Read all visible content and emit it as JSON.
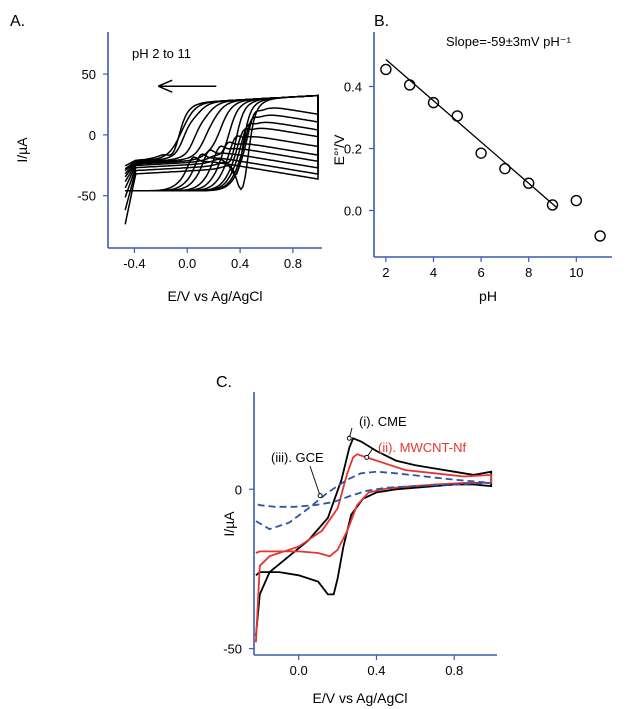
{
  "chart_data": [
    {
      "panel_label": "A.",
      "type": "line",
      "xlabel": "E/V vs Ag/AgCl",
      "ylabel": "I/µA",
      "xlim": [
        -0.6,
        1.02
      ],
      "ylim": [
        -93,
        78
      ],
      "x_ticks": [
        -0.4,
        0.0,
        0.4,
        0.8
      ],
      "x_tick_labels": [
        "-0.4",
        "0.0",
        "0.4",
        "0.8"
      ],
      "y_ticks": [
        -50,
        0,
        50
      ],
      "y_tick_labels": [
        "-50",
        "0",
        "50"
      ],
      "grid": false,
      "annotation": "pH 2 to 11",
      "annotation_arrow": {
        "from": [
          0.22,
          40
        ],
        "to": [
          -0.22,
          40
        ]
      },
      "ph_values": [
        2,
        3,
        4,
        5,
        6,
        7,
        8,
        9,
        10,
        11
      ],
      "series_defaults": {
        "E_start": -0.47,
        "E_end": 0.99
      },
      "series": [
        {
          "pH": 2,
          "Epa": 0.5,
          "Ipa": 72,
          "Epc": 0.42,
          "Ipc": -72,
          "reverse_start": -87
        },
        {
          "pH": 3,
          "Epa": 0.48,
          "Ipa": 66,
          "Epc": 0.38,
          "Ipc": -63,
          "reverse_start": -78
        },
        {
          "pH": 4,
          "Epa": 0.45,
          "Ipa": 60,
          "Epc": 0.33,
          "Ipc": -55,
          "reverse_start": -70
        },
        {
          "pH": 5,
          "Epa": 0.42,
          "Ipa": 55,
          "Epc": 0.28,
          "Ipc": -48,
          "reverse_start": -64
        },
        {
          "pH": 6,
          "Epa": 0.36,
          "Ipa": 48,
          "Epc": 0.22,
          "Ipc": -42,
          "reverse_start": -60
        },
        {
          "pH": 7,
          "Epa": 0.3,
          "Ipa": 42,
          "Epc": 0.15,
          "Ipc": -38,
          "reverse_start": -57
        },
        {
          "pH": 8,
          "Epa": 0.24,
          "Ipa": 38,
          "Epc": 0.08,
          "Ipc": -36,
          "reverse_start": -55
        },
        {
          "pH": 9,
          "Epa": 0.16,
          "Ipa": 34,
          "Epc": 0.0,
          "Ipc": -35,
          "reverse_start": -53
        },
        {
          "pH": 10,
          "Epa": 0.1,
          "Ipa": 30,
          "Epc": -0.06,
          "Ipc": -40,
          "reverse_start": -52
        },
        {
          "pH": 11,
          "Epa": 0.04,
          "Ipa": 27,
          "Epc": -0.1,
          "Ipc": -50,
          "reverse_start": -50
        }
      ]
    },
    {
      "panel_label": "B.",
      "type": "scatter",
      "xlabel": "pH",
      "ylabel": "E°'/V",
      "xlim": [
        1.5,
        11.5
      ],
      "ylim": [
        -0.15,
        0.55
      ],
      "x_ticks": [
        2,
        4,
        6,
        8,
        10
      ],
      "x_tick_labels": [
        "2",
        "4",
        "6",
        "8",
        "10"
      ],
      "y_ticks": [
        0.0,
        0.2,
        0.4
      ],
      "y_tick_labels": [
        "0.0",
        "0.2",
        "0.4"
      ],
      "grid": false,
      "annotation": "Slope=-59±3mV pH⁻¹",
      "x": [
        2,
        3,
        4,
        5,
        6,
        7,
        8,
        9,
        10,
        11
      ],
      "y": [
        0.455,
        0.405,
        0.348,
        0.305,
        0.185,
        0.135,
        0.088,
        0.018,
        0.032,
        -0.082
      ],
      "fit_line": {
        "x": [
          2,
          9.2
        ],
        "y": [
          0.487,
          0.008
        ]
      }
    },
    {
      "panel_label": "C.",
      "type": "line",
      "xlabel": "E/V vs Ag/AgCl",
      "ylabel": "I/µA",
      "xlim": [
        -0.23,
        1.02
      ],
      "ylim": [
        -52,
        28
      ],
      "x_ticks": [
        0.0,
        0.4,
        0.8
      ],
      "x_tick_labels": [
        "0.0",
        "0.4",
        "0.8"
      ],
      "y_ticks": [
        -50,
        0
      ],
      "y_tick_labels": [
        "-50",
        "0"
      ],
      "grid": false,
      "series": [
        {
          "name": "(i). CME",
          "color": "#000000",
          "dash": "solid",
          "forward": [
            [
              -0.22,
              -46
            ],
            [
              -0.2,
              -33
            ],
            [
              -0.15,
              -26
            ],
            [
              -0.05,
              -21
            ],
            [
              0.05,
              -16
            ],
            [
              0.15,
              -9
            ],
            [
              0.22,
              3
            ],
            [
              0.26,
              13
            ],
            [
              0.28,
              16
            ],
            [
              0.32,
              15
            ],
            [
              0.4,
              12
            ],
            [
              0.5,
              9
            ],
            [
              0.6,
              7.5
            ],
            [
              0.7,
              6.5
            ],
            [
              0.8,
              5.5
            ],
            [
              0.9,
              4.5
            ],
            [
              0.99,
              5.5
            ]
          ],
          "reverse": [
            [
              0.99,
              1
            ],
            [
              0.9,
              1.5
            ],
            [
              0.8,
              1.5
            ],
            [
              0.7,
              1
            ],
            [
              0.6,
              0.5
            ],
            [
              0.5,
              0
            ],
            [
              0.4,
              -1
            ],
            [
              0.33,
              -3
            ],
            [
              0.27,
              -8
            ],
            [
              0.23,
              -18
            ],
            [
              0.2,
              -28
            ],
            [
              0.18,
              -33
            ],
            [
              0.15,
              -33
            ],
            [
              0.1,
              -29
            ],
            [
              0.0,
              -27
            ],
            [
              -0.1,
              -26
            ],
            [
              -0.2,
              -26
            ],
            [
              -0.22,
              -27
            ]
          ]
        },
        {
          "name": "(ii). MWCNT-Nf",
          "color": "#e8342f",
          "dash": "solid",
          "forward": [
            [
              -0.22,
              -48
            ],
            [
              -0.2,
              -24
            ],
            [
              -0.15,
              -21
            ],
            [
              0.0,
              -18
            ],
            [
              0.12,
              -13
            ],
            [
              0.2,
              -6
            ],
            [
              0.25,
              5
            ],
            [
              0.28,
              10
            ],
            [
              0.3,
              11
            ],
            [
              0.35,
              10
            ],
            [
              0.45,
              8
            ],
            [
              0.55,
              6
            ],
            [
              0.7,
              5
            ],
            [
              0.85,
              4
            ],
            [
              0.99,
              4.5
            ]
          ],
          "reverse": [
            [
              0.99,
              2
            ],
            [
              0.85,
              2
            ],
            [
              0.7,
              1.5
            ],
            [
              0.55,
              0.8
            ],
            [
              0.45,
              0.2
            ],
            [
              0.36,
              -1
            ],
            [
              0.3,
              -5
            ],
            [
              0.25,
              -13
            ],
            [
              0.2,
              -19
            ],
            [
              0.16,
              -21
            ],
            [
              0.1,
              -20
            ],
            [
              0.0,
              -19.5
            ],
            [
              -0.1,
              -19.5
            ],
            [
              -0.2,
              -19.5
            ],
            [
              -0.22,
              -20
            ]
          ]
        },
        {
          "name": "(iii). GCE",
          "color": "#2f55a8",
          "dash": "dashed",
          "forward": [
            [
              -0.22,
              -10
            ],
            [
              -0.15,
              -12.5
            ],
            [
              -0.05,
              -10.5
            ],
            [
              0.05,
              -6
            ],
            [
              0.15,
              -1
            ],
            [
              0.25,
              3
            ],
            [
              0.32,
              5
            ],
            [
              0.4,
              5.5
            ],
            [
              0.5,
              5
            ],
            [
              0.65,
              4
            ],
            [
              0.8,
              3
            ],
            [
              0.99,
              2
            ]
          ],
          "reverse": [
            [
              0.99,
              2
            ],
            [
              0.8,
              1.5
            ],
            [
              0.6,
              1
            ],
            [
              0.45,
              0.5
            ],
            [
              0.35,
              -0.5
            ],
            [
              0.27,
              -2
            ],
            [
              0.18,
              -4
            ],
            [
              0.08,
              -5
            ],
            [
              -0.02,
              -5.5
            ],
            [
              -0.12,
              -5.5
            ],
            [
              -0.2,
              -5
            ],
            [
              -0.22,
              -4.5
            ]
          ]
        }
      ]
    }
  ]
}
